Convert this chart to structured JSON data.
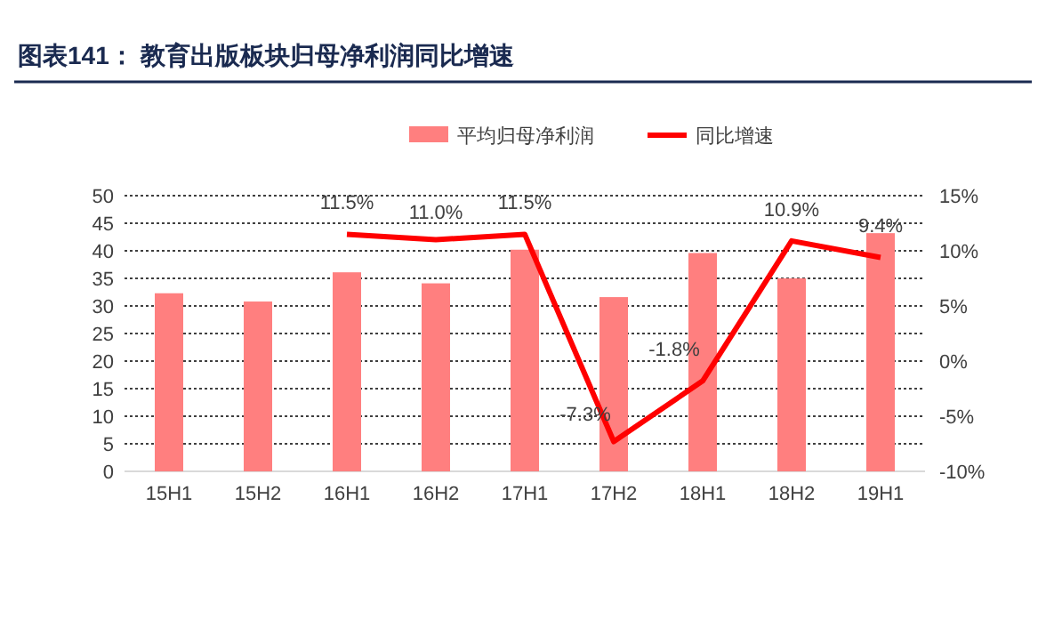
{
  "chart_data": {
    "type": "bar",
    "title": "图表141：   教育出版板块归母净利润同比增速",
    "categories": [
      "15H1",
      "15H2",
      "16H1",
      "16H2",
      "17H1",
      "17H2",
      "18H1",
      "18H2",
      "19H1"
    ],
    "series": [
      {
        "name": "平均归母净利润",
        "color": "#ff7f7f",
        "values": [
          32.3,
          30.8,
          36.1,
          34.1,
          40.2,
          31.6,
          39.6,
          35.0,
          43.2
        ]
      },
      {
        "name": "同比增速",
        "type": "line",
        "axis": "y2",
        "color": "#ff0000",
        "values": [
          null,
          null,
          11.5,
          11.0,
          11.5,
          -7.3,
          -1.8,
          10.9,
          9.4
        ],
        "value_labels": [
          null,
          null,
          "11.5%",
          "11.0%",
          "11.5%",
          "-7.3%",
          "-1.8%",
          "10.9%",
          "9.4%"
        ]
      }
    ],
    "ylim": [
      0,
      50
    ],
    "yticks": [
      0,
      5,
      10,
      15,
      20,
      25,
      30,
      35,
      40,
      45,
      50
    ],
    "y2lim": [
      -10,
      15
    ],
    "y2ticks": [
      {
        "value": -10,
        "label": "-10%"
      },
      {
        "value": -5,
        "label": "-5%"
      },
      {
        "value": 0,
        "label": "0%"
      },
      {
        "value": 5,
        "label": "5%"
      },
      {
        "value": 10,
        "label": "10%"
      },
      {
        "value": 15,
        "label": "15%"
      }
    ],
    "grid": "y",
    "legend": "top",
    "marker": "none"
  }
}
